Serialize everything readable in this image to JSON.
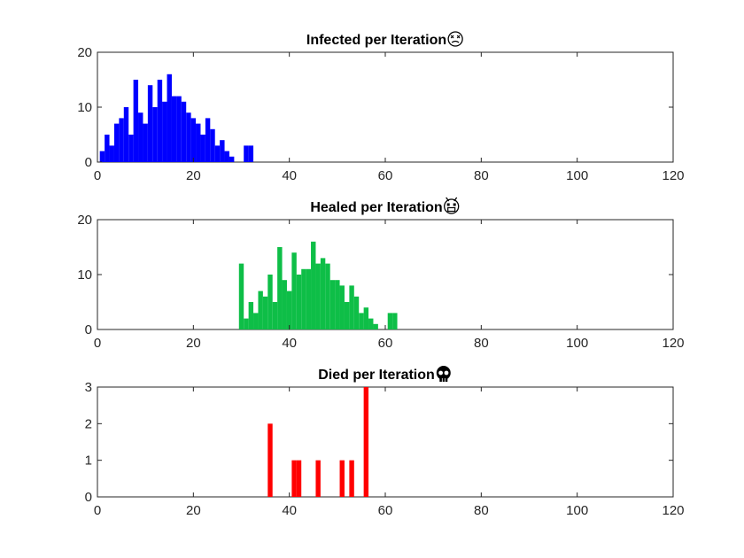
{
  "chart_data": [
    {
      "type": "bar",
      "title": "Infected per Iteration",
      "title_icon": "dizzy-face-icon",
      "color": "#0000ff",
      "xlim": [
        0,
        120
      ],
      "ylim": [
        0,
        20
      ],
      "xticks": [
        0,
        20,
        40,
        60,
        80,
        100,
        120
      ],
      "yticks": [
        0,
        10,
        20
      ],
      "x": [
        1,
        2,
        3,
        4,
        5,
        6,
        7,
        8,
        9,
        10,
        11,
        12,
        13,
        14,
        15,
        16,
        17,
        18,
        19,
        20,
        21,
        22,
        23,
        24,
        25,
        26,
        27,
        28,
        31,
        32
      ],
      "values": [
        2,
        5,
        3,
        7,
        8,
        10,
        5,
        15,
        9,
        7,
        14,
        10,
        15,
        11,
        16,
        12,
        12,
        11,
        9,
        8,
        7,
        5,
        8,
        6,
        3,
        4,
        2,
        1,
        3,
        3
      ]
    },
    {
      "type": "bar",
      "title": "Healed per Iteration",
      "title_icon": "astonished-face-icon",
      "color": "#0ebe47",
      "xlim": [
        0,
        120
      ],
      "ylim": [
        0,
        20
      ],
      "xticks": [
        0,
        20,
        40,
        60,
        80,
        100,
        120
      ],
      "yticks": [
        0,
        10,
        20
      ],
      "x": [
        30,
        31,
        32,
        33,
        34,
        35,
        36,
        37,
        38,
        39,
        40,
        41,
        42,
        43,
        44,
        45,
        46,
        47,
        48,
        49,
        50,
        51,
        52,
        53,
        54,
        55,
        56,
        57,
        58,
        61,
        62
      ],
      "values": [
        12,
        2,
        5,
        3,
        7,
        6,
        10,
        5,
        15,
        9,
        7,
        14,
        10,
        11,
        11,
        16,
        12,
        13,
        12,
        9,
        9,
        8,
        5,
        8,
        6,
        3,
        4,
        2,
        1,
        3,
        3
      ]
    },
    {
      "type": "bar",
      "title": "Died per Iteration",
      "title_icon": "skull-icon",
      "color": "#ff0000",
      "xlim": [
        0,
        120
      ],
      "ylim": [
        0,
        3
      ],
      "xticks": [
        0,
        20,
        40,
        60,
        80,
        100,
        120
      ],
      "yticks": [
        0,
        1,
        2,
        3
      ],
      "x": [
        36,
        41,
        42,
        46,
        51,
        53,
        56
      ],
      "values": [
        2,
        1,
        1,
        1,
        1,
        1,
        3
      ]
    }
  ]
}
